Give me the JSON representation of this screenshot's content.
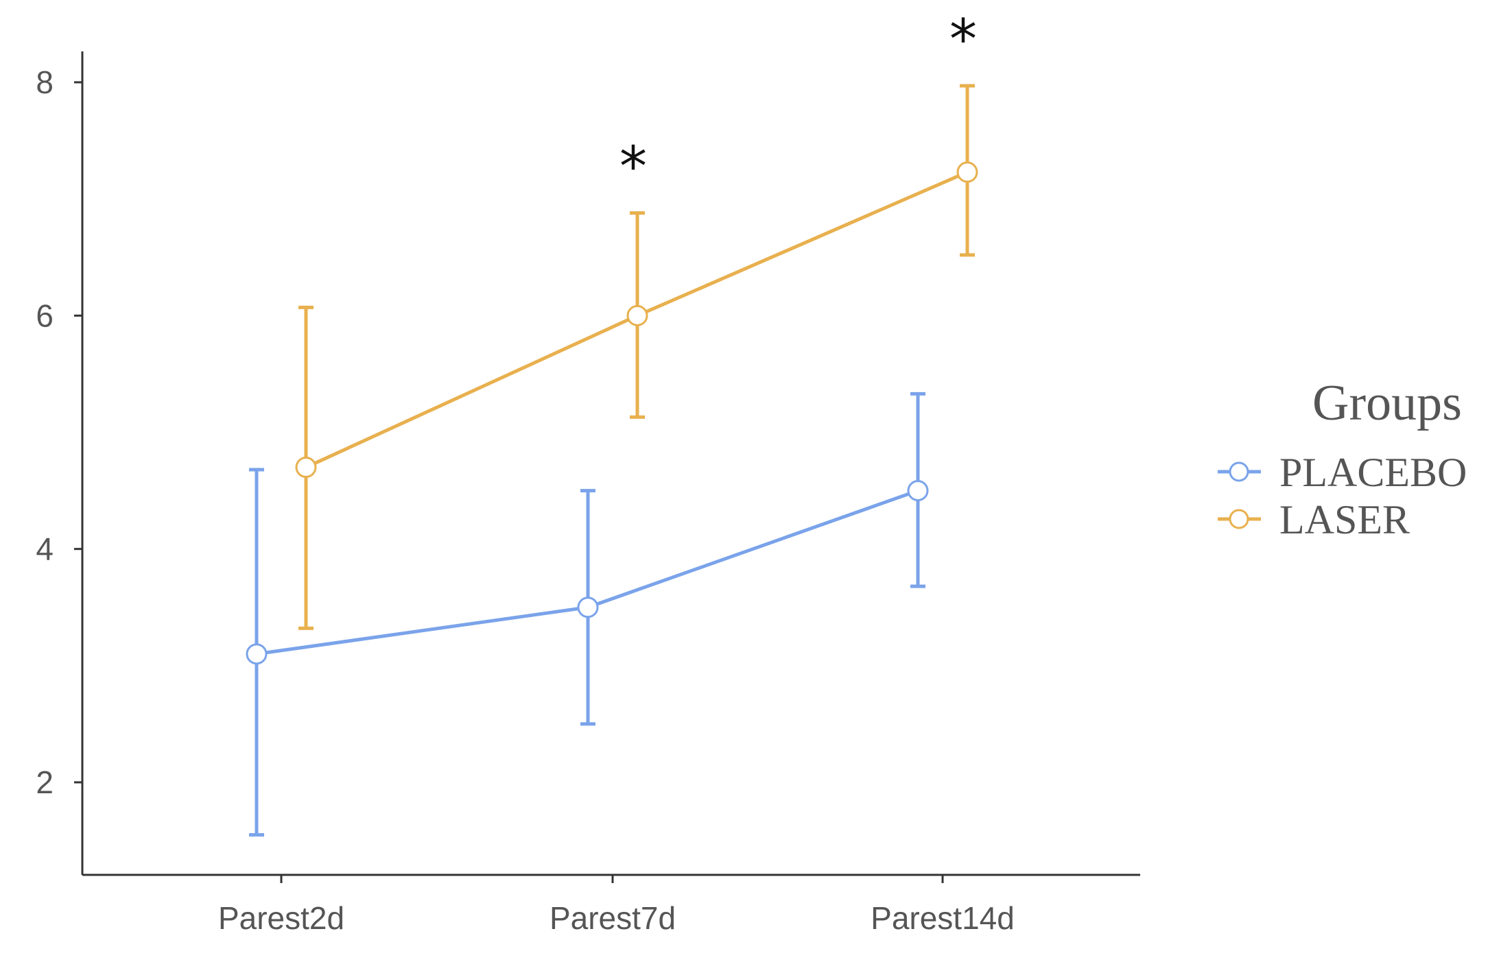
{
  "chart_data": {
    "type": "line",
    "categories": [
      "Parest2d",
      "Parest7d",
      "Parest14d"
    ],
    "ylim": [
      1.3,
      8.5
    ],
    "yticks": [
      2,
      4,
      6,
      8
    ],
    "grid": false,
    "legend_title": "Groups",
    "legend_position": "right",
    "series": [
      {
        "name": "PLACEBO",
        "color": "#7aa3ea",
        "values": [
          3.1,
          3.5,
          4.5
        ],
        "error_low": [
          1.55,
          2.5,
          3.68
        ],
        "error_high": [
          4.68,
          4.5,
          5.33
        ]
      },
      {
        "name": "LASER",
        "color": "#e8b04e",
        "values": [
          4.7,
          6.0,
          7.23
        ],
        "error_low": [
          3.32,
          5.13,
          6.52
        ],
        "error_high": [
          6.07,
          6.88,
          7.97
        ]
      }
    ],
    "annotations": [
      {
        "category": "Parest7d",
        "text": "*"
      },
      {
        "category": "Parest14d",
        "text": "*"
      }
    ]
  }
}
